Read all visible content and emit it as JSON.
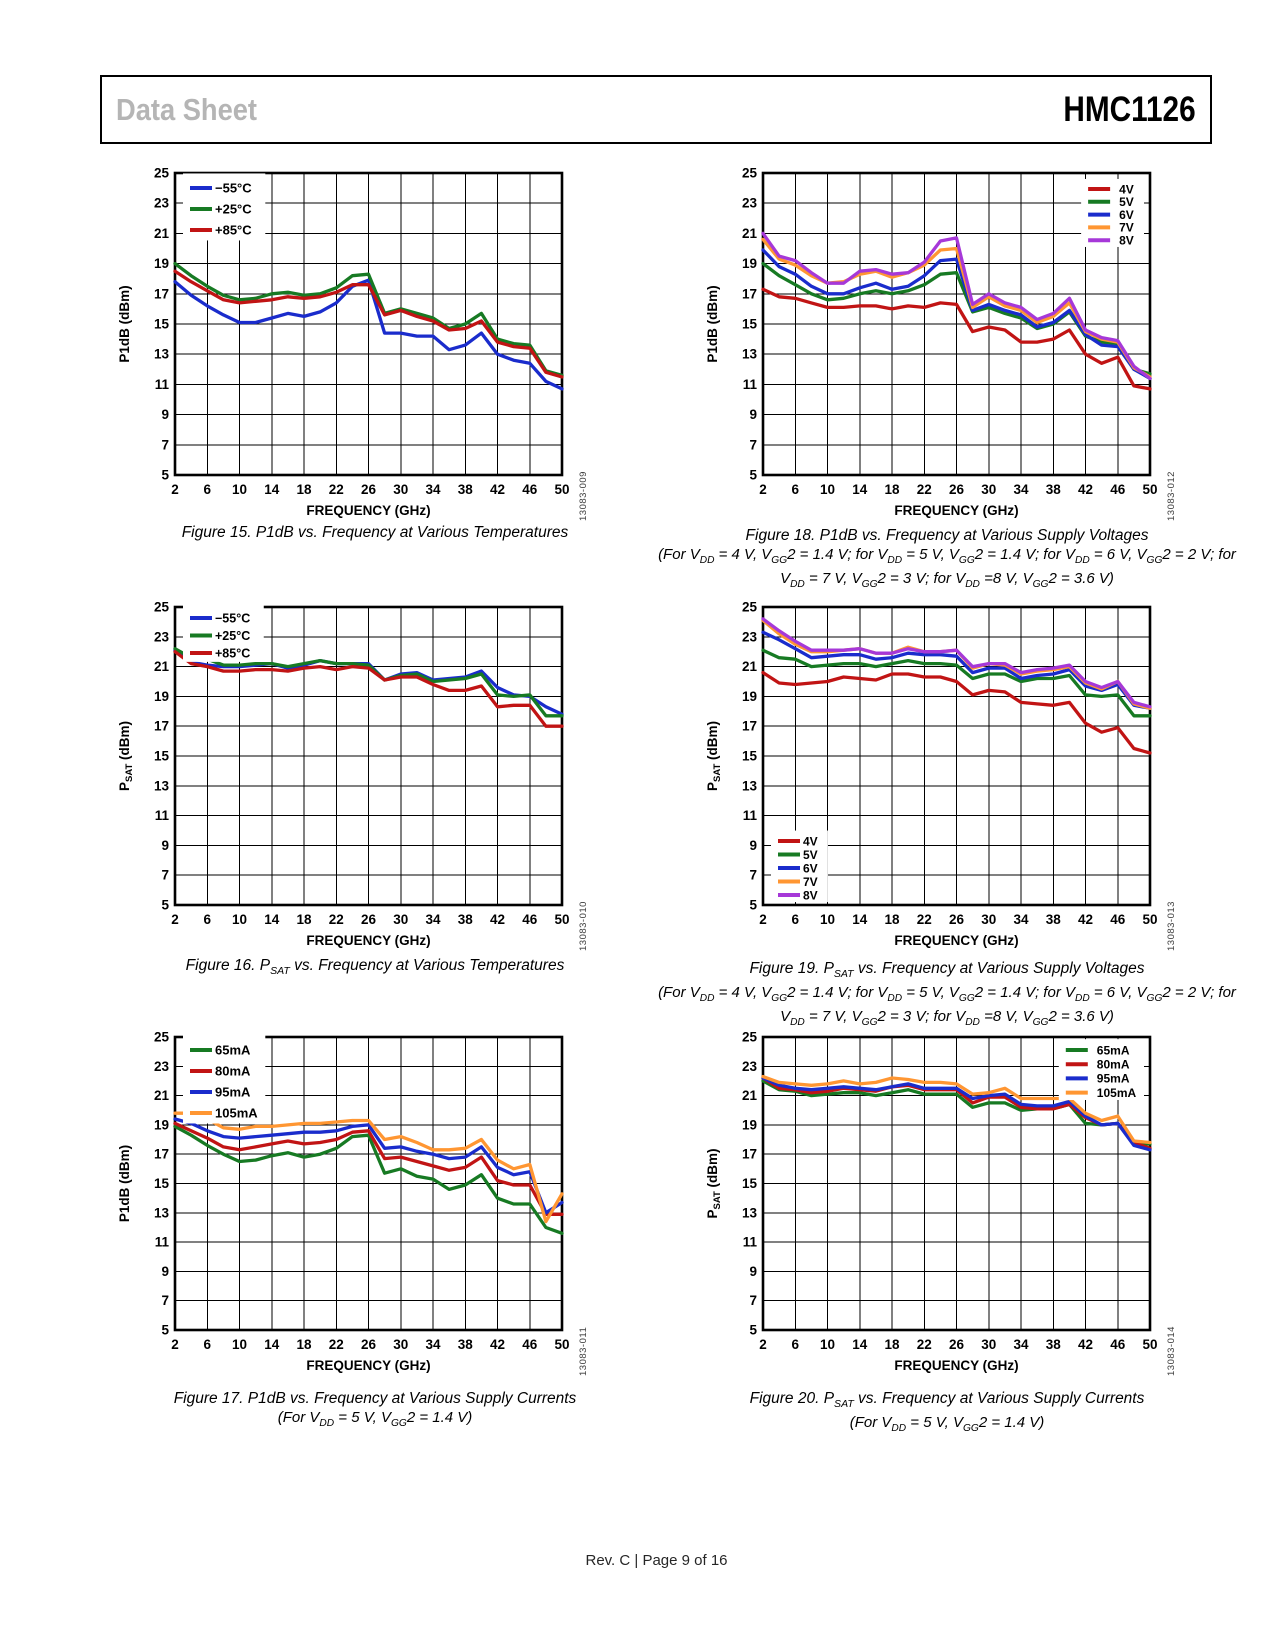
{
  "header": {
    "doc_type": "Data Sheet",
    "part_number": "HMC1126"
  },
  "footer": {
    "text": "Rev. C | Page 9 of 16"
  },
  "chart_data": [
    {
      "type": "line",
      "caption": "Figure 15. P1dB vs. Frequency at Various Temperatures",
      "conditions": [],
      "watermark": "13083-009",
      "xlabel": "FREQUENCY (GHz)",
      "ylabel": "P1dB (dBm)",
      "xlim": [
        2,
        50
      ],
      "ylim": [
        5,
        25
      ],
      "legend_pos": "top-left",
      "x": [
        2,
        4,
        6,
        8,
        10,
        12,
        14,
        16,
        18,
        20,
        22,
        24,
        26,
        28,
        30,
        32,
        34,
        36,
        38,
        40,
        42,
        44,
        46,
        48,
        50
      ],
      "series": [
        {
          "name": "−55°C",
          "color": "#1a2ccc",
          "values": [
            17.8,
            16.9,
            16.2,
            15.6,
            15.1,
            15.1,
            15.4,
            15.7,
            15.5,
            15.8,
            16.4,
            17.5,
            17.9,
            14.4,
            14.4,
            14.2,
            14.2,
            13.3,
            13.6,
            14.4,
            13.0,
            12.6,
            12.4,
            11.2,
            10.7
          ]
        },
        {
          "name": "+25°C",
          "color": "#177a23",
          "values": [
            19.0,
            18.2,
            17.5,
            16.9,
            16.6,
            16.7,
            17.0,
            17.1,
            16.9,
            17.0,
            17.4,
            18.2,
            18.3,
            15.7,
            16.0,
            15.7,
            15.4,
            14.7,
            15.0,
            15.7,
            14.0,
            13.7,
            13.6,
            11.9,
            11.6
          ]
        },
        {
          "name": "+85°C",
          "color": "#c11414",
          "values": [
            18.5,
            17.8,
            17.2,
            16.6,
            16.4,
            16.5,
            16.6,
            16.8,
            16.7,
            16.8,
            17.1,
            17.6,
            17.6,
            15.6,
            15.9,
            15.5,
            15.2,
            14.6,
            14.7,
            15.2,
            13.8,
            13.5,
            13.4,
            11.8,
            11.5
          ]
        }
      ]
    },
    {
      "type": "line",
      "caption": "Figure 18. P1dB vs. Frequency at Various Supply Voltages",
      "conditions": [
        "(For V_{DD} = 4 V, V_{GG}2 = 1.4 V; for V_{DD} = 5 V, V_{GG}2 = 1.4 V; for V_{DD} = 6 V, V_{GG}2 = 2 V; for",
        "V_{DD} = 7 V, V_{GG}2 = 3 V; for V_{DD} =8 V, V_{GG}2 = 3.6 V)"
      ],
      "watermark": "13083-012",
      "xlabel": "FREQUENCY (GHz)",
      "ylabel": "P1dB (dBm)",
      "xlim": [
        2,
        50
      ],
      "ylim": [
        5,
        25
      ],
      "legend_pos": "top-right",
      "x": [
        2,
        4,
        6,
        8,
        10,
        12,
        14,
        16,
        18,
        20,
        22,
        24,
        26,
        28,
        30,
        32,
        34,
        36,
        38,
        40,
        42,
        44,
        46,
        48,
        50
      ],
      "series": [
        {
          "name": "4V",
          "color": "#c11414",
          "values": [
            17.3,
            16.8,
            16.7,
            16.4,
            16.1,
            16.1,
            16.2,
            16.2,
            16.0,
            16.2,
            16.1,
            16.4,
            16.3,
            14.5,
            14.8,
            14.6,
            13.8,
            13.8,
            14.0,
            14.6,
            13.0,
            12.4,
            12.8,
            10.9,
            10.7
          ]
        },
        {
          "name": "5V",
          "color": "#177a23",
          "values": [
            19.0,
            18.2,
            17.6,
            17.0,
            16.6,
            16.7,
            17.0,
            17.2,
            17.0,
            17.2,
            17.6,
            18.3,
            18.4,
            15.8,
            16.1,
            15.7,
            15.4,
            14.7,
            15.0,
            15.8,
            14.2,
            13.8,
            13.7,
            12.0,
            11.7
          ]
        },
        {
          "name": "6V",
          "color": "#1a2ccc",
          "values": [
            19.9,
            18.8,
            18.3,
            17.5,
            17.0,
            17.0,
            17.4,
            17.7,
            17.3,
            17.5,
            18.2,
            19.2,
            19.3,
            15.9,
            16.3,
            15.9,
            15.6,
            14.8,
            15.1,
            15.9,
            14.3,
            13.6,
            13.5,
            12.0,
            11.4
          ]
        },
        {
          "name": "7V",
          "color": "#ff9632",
          "values": [
            20.6,
            19.3,
            18.9,
            18.2,
            17.7,
            17.8,
            18.3,
            18.5,
            18.1,
            18.4,
            18.9,
            19.9,
            20.0,
            16.1,
            16.8,
            16.2,
            15.9,
            15.1,
            15.5,
            16.4,
            14.5,
            14.0,
            13.8,
            12.1,
            11.5
          ]
        },
        {
          "name": "8V",
          "color": "#a638d8",
          "values": [
            21.0,
            19.5,
            19.2,
            18.4,
            17.7,
            17.7,
            18.5,
            18.6,
            18.3,
            18.4,
            19.1,
            20.5,
            20.7,
            16.3,
            17.0,
            16.4,
            16.1,
            15.3,
            15.7,
            16.7,
            14.6,
            14.1,
            13.9,
            12.2,
            11.4
          ]
        }
      ]
    },
    {
      "type": "line",
      "caption": "Figure 16. P_{SAT} vs. Frequency at Various Temperatures",
      "conditions": [],
      "watermark": "13083-010",
      "xlabel": "FREQUENCY (GHz)",
      "ylabel": "P_{SAT} (dBm)",
      "xlim": [
        2,
        50
      ],
      "ylim": [
        5,
        25
      ],
      "legend_pos": "top-left",
      "x": [
        2,
        4,
        6,
        8,
        10,
        12,
        14,
        16,
        18,
        20,
        22,
        24,
        26,
        28,
        30,
        32,
        34,
        36,
        38,
        40,
        42,
        44,
        46,
        48,
        50
      ],
      "series": [
        {
          "name": "−55°C",
          "color": "#1a2ccc",
          "values": [
            22.1,
            21.3,
            21.1,
            21.0,
            21.0,
            21.1,
            21.2,
            20.9,
            21.1,
            21.4,
            21.2,
            21.2,
            21.2,
            20.1,
            20.5,
            20.6,
            20.1,
            20.2,
            20.3,
            20.7,
            19.6,
            19.1,
            19.0,
            18.3,
            17.8
          ]
        },
        {
          "name": "+25°C",
          "color": "#177a23",
          "values": [
            22.2,
            21.6,
            21.5,
            21.1,
            21.1,
            21.2,
            21.2,
            21.0,
            21.2,
            21.4,
            21.2,
            21.2,
            21.1,
            20.1,
            20.4,
            20.5,
            20.0,
            20.1,
            20.2,
            20.5,
            19.1,
            19.0,
            19.1,
            17.7,
            17.7
          ]
        },
        {
          "name": "+85°C",
          "color": "#c11414",
          "values": [
            22.0,
            21.2,
            21.0,
            20.7,
            20.7,
            20.8,
            20.8,
            20.7,
            20.9,
            21.0,
            20.8,
            21.0,
            20.9,
            20.1,
            20.3,
            20.3,
            19.8,
            19.4,
            19.4,
            19.7,
            18.3,
            18.4,
            18.4,
            17.0,
            17.0
          ]
        }
      ]
    },
    {
      "type": "line",
      "caption": "Figure 19. P_{SAT} vs. Frequency at Various Supply Voltages",
      "conditions": [
        "(For V_{DD} = 4 V, V_{GG}2 = 1.4 V; for V_{DD} = 5 V, V_{GG}2 = 1.4 V; for V_{DD} = 6 V, V_{GG}2 = 2 V; for",
        "V_{DD} = 7 V, V_{GG}2 = 3 V; for V_{DD} =8 V, V_{GG}2 = 3.6 V)"
      ],
      "watermark": "13083-013",
      "xlabel": "FREQUENCY (GHz)",
      "ylabel": "P_{SAT} (dBm)",
      "xlim": [
        2,
        50
      ],
      "ylim": [
        5,
        25
      ],
      "legend_pos": "bottom-left",
      "x": [
        2,
        4,
        6,
        8,
        10,
        12,
        14,
        16,
        18,
        20,
        22,
        24,
        26,
        28,
        30,
        32,
        34,
        36,
        38,
        40,
        42,
        44,
        46,
        48,
        50
      ],
      "series": [
        {
          "name": "4V",
          "color": "#c11414",
          "values": [
            20.6,
            19.9,
            19.8,
            19.9,
            20.0,
            20.3,
            20.2,
            20.1,
            20.5,
            20.5,
            20.3,
            20.3,
            20.0,
            19.1,
            19.4,
            19.3,
            18.6,
            18.5,
            18.4,
            18.6,
            17.2,
            16.6,
            16.9,
            15.5,
            15.2
          ]
        },
        {
          "name": "5V",
          "color": "#177a23",
          "values": [
            22.1,
            21.6,
            21.5,
            21.0,
            21.1,
            21.2,
            21.2,
            21.0,
            21.2,
            21.4,
            21.2,
            21.2,
            21.1,
            20.2,
            20.5,
            20.5,
            20.0,
            20.2,
            20.2,
            20.4,
            19.1,
            19.0,
            19.1,
            17.7,
            17.7
          ]
        },
        {
          "name": "6V",
          "color": "#1a2ccc",
          "values": [
            23.3,
            22.8,
            22.2,
            21.6,
            21.7,
            21.8,
            21.8,
            21.5,
            21.6,
            21.9,
            21.8,
            21.8,
            21.7,
            20.6,
            20.9,
            20.9,
            20.2,
            20.4,
            20.5,
            20.8,
            19.7,
            19.4,
            19.8,
            18.4,
            18.2
          ]
        },
        {
          "name": "7V",
          "color": "#ff9632",
          "values": [
            24.1,
            23.2,
            22.5,
            22.0,
            22.0,
            22.1,
            22.2,
            21.9,
            21.9,
            22.3,
            22.0,
            22.0,
            22.1,
            20.9,
            21.2,
            21.1,
            20.5,
            20.7,
            20.8,
            21.0,
            19.9,
            19.5,
            20.0,
            18.5,
            18.2
          ]
        },
        {
          "name": "8V",
          "color": "#a638d8",
          "values": [
            24.2,
            23.4,
            22.7,
            22.1,
            22.1,
            22.1,
            22.2,
            21.9,
            21.9,
            22.2,
            22.0,
            22.0,
            22.1,
            21.0,
            21.2,
            21.2,
            20.6,
            20.8,
            20.9,
            21.1,
            20.0,
            19.6,
            20.0,
            18.6,
            18.3
          ]
        }
      ]
    },
    {
      "type": "line",
      "caption": "Figure 17. P1dB vs. Frequency at Various Supply Currents",
      "conditions": [
        "(For V_{DD} = 5 V, V_{GG}2 = 1.4 V)"
      ],
      "watermark": "13083-011",
      "xlabel": "FREQUENCY (GHz)",
      "ylabel": "P1dB (dBm)",
      "xlim": [
        2,
        50
      ],
      "ylim": [
        5,
        25
      ],
      "legend_pos": "top-left",
      "x": [
        2,
        4,
        6,
        8,
        10,
        12,
        14,
        16,
        18,
        20,
        22,
        24,
        26,
        28,
        30,
        32,
        34,
        36,
        38,
        40,
        42,
        44,
        46,
        48,
        50
      ],
      "series": [
        {
          "name": "65mA",
          "color": "#177a23",
          "values": [
            18.9,
            18.3,
            17.6,
            17.0,
            16.5,
            16.6,
            16.9,
            17.1,
            16.8,
            17.0,
            17.4,
            18.2,
            18.3,
            15.7,
            16.0,
            15.5,
            15.3,
            14.6,
            14.9,
            15.6,
            14.0,
            13.6,
            13.6,
            12.0,
            11.6
          ]
        },
        {
          "name": "80mA",
          "color": "#c11414",
          "values": [
            19.1,
            18.6,
            18.1,
            17.5,
            17.3,
            17.5,
            17.7,
            17.9,
            17.7,
            17.8,
            18.0,
            18.5,
            18.6,
            16.7,
            16.8,
            16.5,
            16.2,
            15.9,
            16.1,
            16.8,
            15.2,
            14.9,
            14.9,
            12.9,
            12.9
          ]
        },
        {
          "name": "95mA",
          "color": "#1a2ccc",
          "values": [
            19.4,
            19.1,
            18.6,
            18.2,
            18.1,
            18.2,
            18.3,
            18.4,
            18.5,
            18.5,
            18.6,
            18.9,
            19.0,
            17.4,
            17.5,
            17.2,
            17.0,
            16.7,
            16.8,
            17.5,
            16.1,
            15.6,
            15.8,
            13.0,
            13.7
          ]
        },
        {
          "name": "105mA",
          "color": "#ff9632",
          "values": [
            19.8,
            19.8,
            19.4,
            18.8,
            18.7,
            18.9,
            18.9,
            19.0,
            19.1,
            19.1,
            19.2,
            19.3,
            19.3,
            18.0,
            18.2,
            17.8,
            17.3,
            17.3,
            17.4,
            18.0,
            16.6,
            16.0,
            16.3,
            12.4,
            14.3
          ]
        }
      ]
    },
    {
      "type": "line",
      "caption": "Figure 20. P_{SAT} vs. Frequency at Various Supply Currents",
      "conditions": [
        "(For V_{DD} = 5 V, V_{GG}2 = 1.4 V)"
      ],
      "watermark": "13083-014",
      "xlabel": "FREQUENCY (GHz)",
      "ylabel": "P_{SAT} (dBm)",
      "xlim": [
        2,
        50
      ],
      "ylim": [
        5,
        25
      ],
      "legend_pos": "top-right",
      "x": [
        2,
        4,
        6,
        8,
        10,
        12,
        14,
        16,
        18,
        20,
        22,
        24,
        26,
        28,
        30,
        32,
        34,
        36,
        38,
        40,
        42,
        44,
        46,
        48,
        50
      ],
      "series": [
        {
          "name": "65mA",
          "color": "#177a23",
          "values": [
            22.0,
            21.4,
            21.3,
            21.0,
            21.1,
            21.2,
            21.2,
            21.0,
            21.2,
            21.4,
            21.1,
            21.1,
            21.1,
            20.2,
            20.5,
            20.5,
            20.0,
            20.1,
            20.1,
            20.4,
            19.1,
            19.0,
            19.1,
            17.7,
            17.7
          ]
        },
        {
          "name": "80mA",
          "color": "#c11414",
          "values": [
            22.2,
            21.5,
            21.4,
            21.2,
            21.3,
            21.5,
            21.4,
            21.3,
            21.6,
            21.7,
            21.4,
            21.4,
            21.4,
            20.5,
            20.9,
            20.9,
            20.2,
            20.1,
            20.1,
            20.4,
            19.5,
            19.0,
            19.1,
            17.8,
            17.4
          ]
        },
        {
          "name": "95mA",
          "color": "#1a2ccc",
          "values": [
            22.2,
            21.7,
            21.5,
            21.4,
            21.5,
            21.6,
            21.5,
            21.4,
            21.6,
            21.8,
            21.5,
            21.5,
            21.5,
            20.8,
            21.0,
            21.1,
            20.4,
            20.3,
            20.3,
            20.6,
            19.6,
            19.0,
            19.1,
            17.6,
            17.3
          ]
        },
        {
          "name": "105mA",
          "color": "#ff9632",
          "values": [
            22.3,
            21.9,
            21.8,
            21.7,
            21.8,
            22.0,
            21.8,
            21.9,
            22.2,
            22.1,
            21.9,
            21.9,
            21.8,
            21.1,
            21.2,
            21.5,
            20.8,
            20.8,
            20.8,
            20.8,
            19.8,
            19.3,
            19.6,
            17.9,
            17.8
          ]
        }
      ]
    }
  ]
}
